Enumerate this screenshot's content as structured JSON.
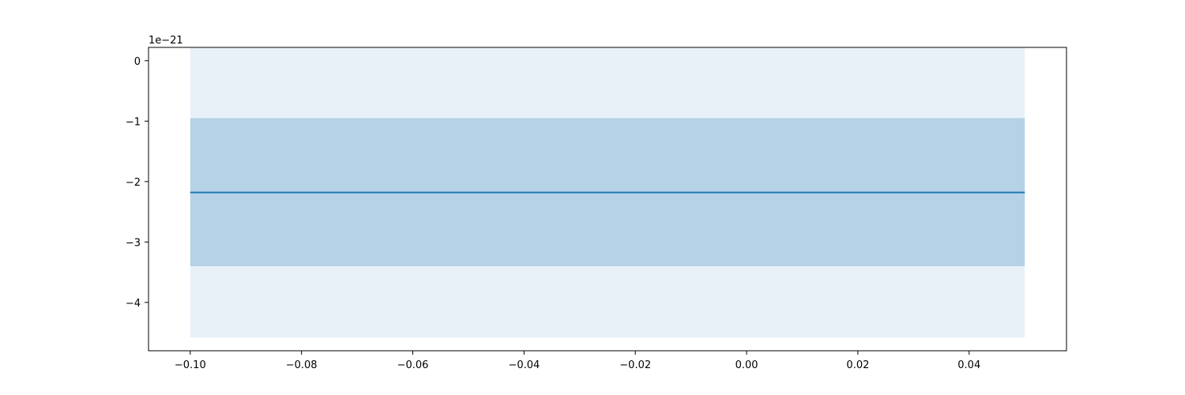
{
  "chart_data": {
    "type": "line",
    "title": "",
    "xlabel": "",
    "ylabel": "",
    "y_offset_text": "1e−21",
    "xlim": [
      -0.1075,
      0.0575
    ],
    "ylim": [
      -4.8,
      0.22
    ],
    "x_ticks": [
      -0.1,
      -0.08,
      -0.06,
      -0.04,
      -0.02,
      0.0,
      0.02,
      0.04
    ],
    "x_tick_labels": [
      "−0.10",
      "−0.08",
      "−0.06",
      "−0.04",
      "−0.02",
      "0.00",
      "0.02",
      "0.04"
    ],
    "y_ticks": [
      0,
      -1,
      -2,
      -3,
      -4
    ],
    "y_tick_labels": [
      "0",
      "−1",
      "−2",
      "−3",
      "−4"
    ],
    "grid": false,
    "legend": "none",
    "series": [
      {
        "x": [
          -0.1,
          0.05
        ],
        "y": [
          -2.18,
          -2.18
        ],
        "color": "#1f77b4"
      }
    ],
    "bands": [
      {
        "x": [
          -0.1,
          0.05
        ],
        "y_low": -4.58,
        "y_high": 0.21,
        "color": "#1f77b4",
        "opacity": 0.1
      },
      {
        "x": [
          -0.1,
          0.05
        ],
        "y_low": -3.4,
        "y_high": -0.95,
        "color": "#1f77b4",
        "opacity": 0.25
      }
    ]
  }
}
